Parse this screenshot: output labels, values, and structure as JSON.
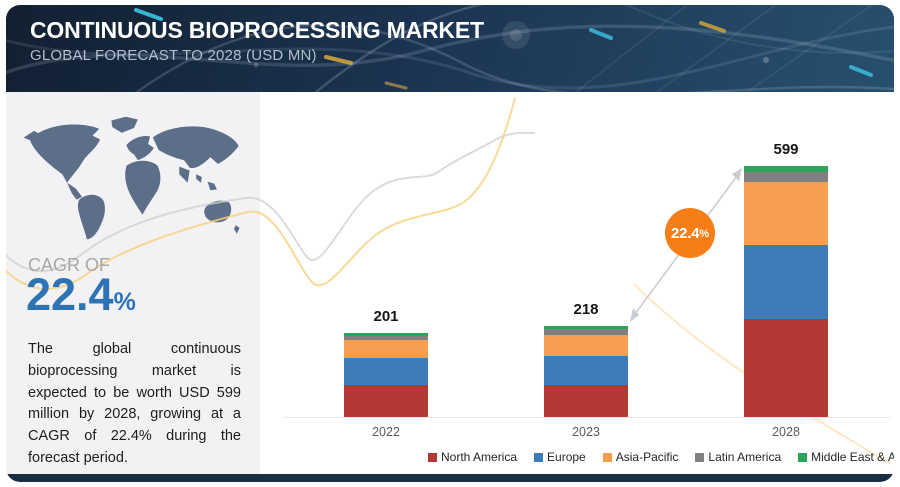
{
  "header": {
    "title": "CONTINUOUS BIOPROCESSING MARKET",
    "subtitle": "GLOBAL FORECAST TO 2028 (USD MN)"
  },
  "sidebar": {
    "cagr_label": "CAGR OF",
    "cagr_value": "22.4",
    "cagr_unit": "%",
    "description": "The global continuous bioprocessing market is expected to be worth USD 599 million by 2028, growing at a CAGR of 22.4% during the forecast period."
  },
  "chart_data": {
    "type": "bar",
    "variant": "stacked",
    "title": "CONTINUOUS BIOPROCESSING MARKET",
    "subtitle": "GLOBAL FORECAST TO 2028 (USD MN)",
    "unit": "USD MN",
    "categories": [
      "2022",
      "2023",
      "2028"
    ],
    "totals": [
      201,
      218,
      599
    ],
    "series": [
      {
        "name": "North America",
        "color": "#b23a32",
        "values": [
          76,
          76,
          234
        ]
      },
      {
        "name": "Europe",
        "color": "#3c7cb8",
        "values": [
          64,
          71,
          177
        ]
      },
      {
        "name": "Asia-Pacific",
        "color": "#f79d4f",
        "values": [
          45,
          50,
          150
        ]
      },
      {
        "name": "Latin America",
        "color": "#7f7f7f",
        "values": [
          9,
          13,
          24
        ]
      },
      {
        "name": "Middle East & Africa",
        "color": "#2aa55a",
        "values": [
          7,
          8,
          14
        ]
      }
    ],
    "annotation": {
      "label": "22.4",
      "unit": "%",
      "color": "#f57e17"
    },
    "legend_position": "bottom",
    "xlabel": "",
    "ylabel": "",
    "grid": false
  },
  "colors": {
    "header_bg": "#1b3350",
    "sidebar_bg": "#f2f2f4",
    "cagr_blue": "#2e74b5",
    "annotation_orange": "#f57e17",
    "map_gray": "#5d6e88",
    "footer_navy": "#1b2d43"
  }
}
